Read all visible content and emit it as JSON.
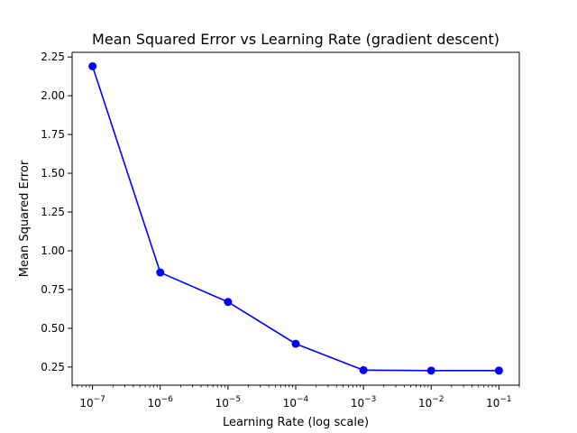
{
  "chart_data": {
    "type": "line",
    "title": "Mean Squared Error vs Learning Rate (gradient descent)",
    "xlabel": "Learning Rate (log scale)",
    "ylabel": "Mean Squared Error",
    "x_scale": "log",
    "x_ticks": [
      {
        "value": 1e-07,
        "base": "10",
        "exp": "−7"
      },
      {
        "value": 1e-06,
        "base": "10",
        "exp": "−6"
      },
      {
        "value": 1e-05,
        "base": "10",
        "exp": "−5"
      },
      {
        "value": 0.0001,
        "base": "10",
        "exp": "−4"
      },
      {
        "value": 0.001,
        "base": "10",
        "exp": "−3"
      },
      {
        "value": 0.01,
        "base": "10",
        "exp": "−2"
      },
      {
        "value": 0.1,
        "base": "10",
        "exp": "−1"
      }
    ],
    "y_ticks": [
      "0.25",
      "0.50",
      "0.75",
      "1.00",
      "1.25",
      "1.50",
      "1.75",
      "2.00",
      "2.25"
    ],
    "xlim": [
      5e-08,
      0.2
    ],
    "ylim": [
      0.133,
      2.28
    ],
    "grid": false,
    "series": [
      {
        "color": "#0000ff",
        "marker": "circle",
        "x": [
          1e-07,
          1e-06,
          1e-05,
          0.0001,
          0.001,
          0.01,
          0.1
        ],
        "y": [
          2.19,
          0.86,
          0.67,
          0.4,
          0.23,
          0.227,
          0.227
        ]
      }
    ]
  }
}
